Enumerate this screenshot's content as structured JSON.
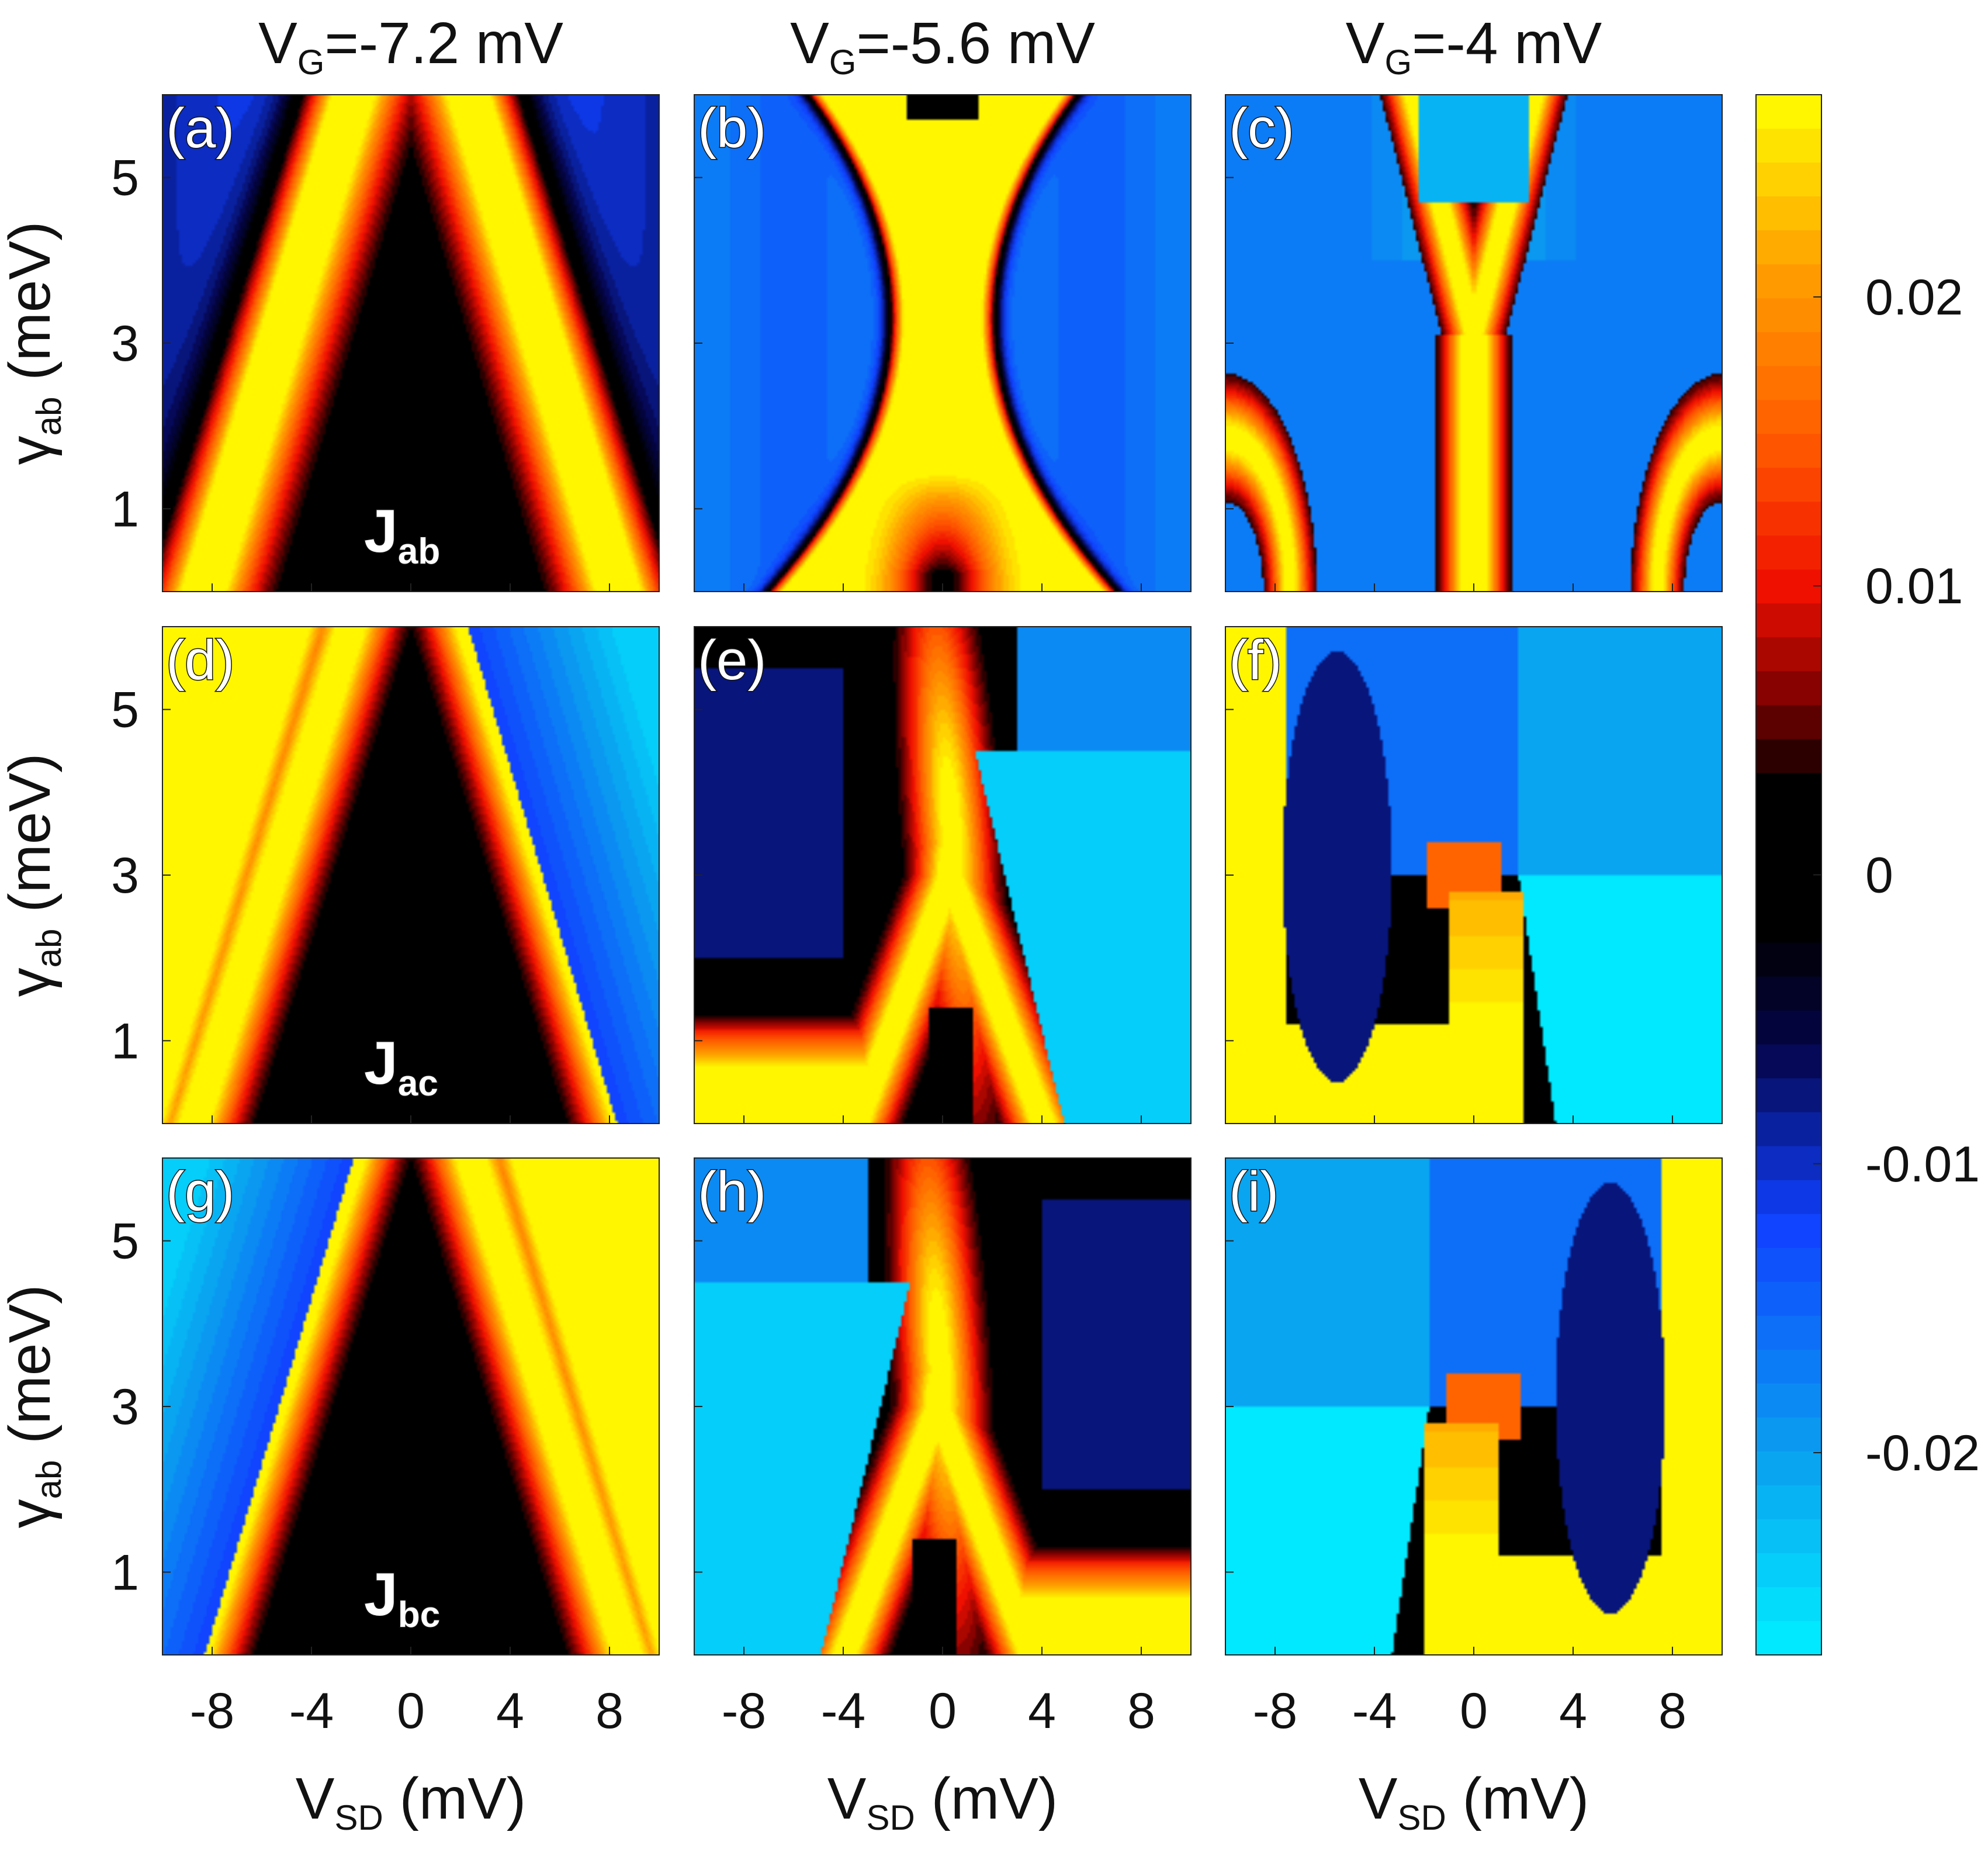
{
  "chart_data": {
    "type": "heatmap",
    "layout": "3x3 grid of contour heatmaps sharing one colorbar",
    "column_titles": [
      {
        "main": "V",
        "sub": "G",
        "rest": "=-7.2 mV"
      },
      {
        "main": "V",
        "sub": "G",
        "rest": "=-5.6 mV"
      },
      {
        "main": "V",
        "sub": "G",
        "rest": "=-4 mV"
      }
    ],
    "xlabel": {
      "main": "V",
      "sub": "SD",
      "rest": " (mV)"
    },
    "ylabel": {
      "main": "γ",
      "sub": "ab",
      "rest": " (meV)"
    },
    "xlim": [
      -10,
      10
    ],
    "ylim": [
      0,
      6
    ],
    "xticks": [
      -8,
      -4,
      0,
      4,
      8
    ],
    "xtick_labels": [
      "-8",
      "-4",
      "0",
      "4",
      "8"
    ],
    "yticks": [
      1,
      3,
      5
    ],
    "ytick_labels": [
      "1",
      "3",
      "5"
    ],
    "row_labels": [
      {
        "main": "J",
        "sub": "ab"
      },
      {
        "main": "J",
        "sub": "ac"
      },
      {
        "main": "J",
        "sub": "bc"
      }
    ],
    "colorbar": {
      "limits": [
        -0.027,
        0.027
      ],
      "ticks": [
        0.02,
        0.01,
        0,
        -0.01,
        -0.02
      ],
      "tick_labels": [
        "0.02",
        "0.01",
        "0",
        "-0.01",
        "-0.02"
      ],
      "colormap_stops": [
        {
          "value": -0.027,
          "color": "#00f0ff"
        },
        {
          "value": -0.02,
          "color": "#0a9ff0"
        },
        {
          "value": -0.012,
          "color": "#1040ff"
        },
        {
          "value": -0.006,
          "color": "#05054a"
        },
        {
          "value": -0.002,
          "color": "#000000"
        },
        {
          "value": 0.003,
          "color": "#000000"
        },
        {
          "value": 0.006,
          "color": "#7a0000"
        },
        {
          "value": 0.01,
          "color": "#f01000"
        },
        {
          "value": 0.015,
          "color": "#ff5a00"
        },
        {
          "value": 0.021,
          "color": "#ffa000"
        },
        {
          "value": 0.027,
          "color": "#ffff00"
        }
      ]
    },
    "panels": [
      {
        "label": "(a)",
        "row": 0,
        "col": 0,
        "quantity": "J_ab",
        "vg": -7.2
      },
      {
        "label": "(b)",
        "row": 0,
        "col": 1,
        "quantity": "J_ab",
        "vg": -5.6
      },
      {
        "label": "(c)",
        "row": 0,
        "col": 2,
        "quantity": "J_ab",
        "vg": -4
      },
      {
        "label": "(d)",
        "row": 1,
        "col": 0,
        "quantity": "J_ac",
        "vg": -7.2
      },
      {
        "label": "(e)",
        "row": 1,
        "col": 1,
        "quantity": "J_ac",
        "vg": -5.6
      },
      {
        "label": "(f)",
        "row": 1,
        "col": 2,
        "quantity": "J_ac",
        "vg": -4
      },
      {
        "label": "(g)",
        "row": 2,
        "col": 0,
        "quantity": "J_bc",
        "vg": -7.2
      },
      {
        "label": "(h)",
        "row": 2,
        "col": 1,
        "quantity": "J_bc",
        "vg": -5.6
      },
      {
        "label": "(i)",
        "row": 2,
        "col": 2,
        "quantity": "J_bc",
        "vg": -4
      }
    ]
  }
}
